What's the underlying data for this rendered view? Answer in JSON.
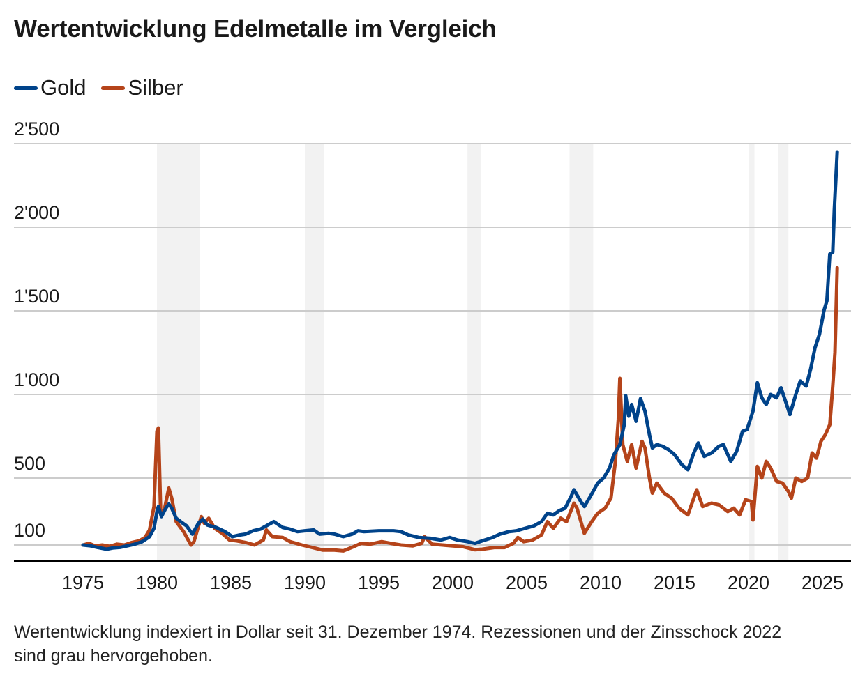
{
  "title": "Wertentwicklung Edelmetalle im Vergleich",
  "legend": [
    {
      "label": "Gold",
      "color": "#00438a"
    },
    {
      "label": "Silber",
      "color": "#b5441a"
    }
  ],
  "footnote": "Wertentwicklung indexiert in Dollar seit 31. Dezember 1974. Rezessionen und der Zinsschock 2022 sind grau hervorgehoben.",
  "chart_data": {
    "type": "line",
    "title": "Wertentwicklung Edelmetalle im Vergleich",
    "xlabel": "",
    "ylabel": "",
    "xlim": [
      1972.6,
      2027.0
    ],
    "ylim": [
      0,
      2500
    ],
    "grid": true,
    "legend_position": "top-left",
    "y_ticks": [
      {
        "value": 100,
        "label": "100"
      },
      {
        "value": 500,
        "label": "500"
      },
      {
        "value": 1000,
        "label": "1'000"
      },
      {
        "value": 1500,
        "label": "1'500"
      },
      {
        "value": 2000,
        "label": "2'000"
      },
      {
        "value": 2500,
        "label": "2'500"
      }
    ],
    "x_ticks": [
      {
        "value": 1975,
        "label": "1975"
      },
      {
        "value": 1980,
        "label": "1980"
      },
      {
        "value": 1985,
        "label": "1985"
      },
      {
        "value": 1990,
        "label": "1990"
      },
      {
        "value": 1995,
        "label": "1995"
      },
      {
        "value": 2000,
        "label": "2000"
      },
      {
        "value": 2005,
        "label": "2005"
      },
      {
        "value": 2010,
        "label": "2010"
      },
      {
        "value": 2015,
        "label": "2015"
      },
      {
        "value": 2020,
        "label": "2020"
      },
      {
        "value": 2025,
        "label": "2025"
      }
    ],
    "shaded_periods": [
      {
        "from": 1980.0,
        "to": 1982.9,
        "label": "Rezession"
      },
      {
        "from": 1990.0,
        "to": 1991.3,
        "label": "Rezession"
      },
      {
        "from": 2001.0,
        "to": 2001.9,
        "label": "Rezession"
      },
      {
        "from": 2007.9,
        "to": 2009.5,
        "label": "Rezession"
      },
      {
        "from": 2020.0,
        "to": 2020.4,
        "label": "Rezession"
      },
      {
        "from": 2022.0,
        "to": 2022.7,
        "label": "Zinsschock"
      }
    ],
    "series": [
      {
        "name": "Gold",
        "color": "#00438a",
        "points": [
          [
            1975.0,
            100
          ],
          [
            1975.5,
            95
          ],
          [
            1976.0,
            85
          ],
          [
            1976.6,
            75
          ],
          [
            1977.0,
            82
          ],
          [
            1977.5,
            86
          ],
          [
            1978.0,
            95
          ],
          [
            1978.5,
            105
          ],
          [
            1979.0,
            120
          ],
          [
            1979.5,
            150
          ],
          [
            1979.8,
            200
          ],
          [
            1980.0,
            300
          ],
          [
            1980.1,
            330
          ],
          [
            1980.3,
            270
          ],
          [
            1980.6,
            320
          ],
          [
            1980.8,
            345
          ],
          [
            1981.0,
            320
          ],
          [
            1981.3,
            260
          ],
          [
            1981.6,
            240
          ],
          [
            1982.0,
            215
          ],
          [
            1982.4,
            165
          ],
          [
            1982.8,
            230
          ],
          [
            1983.1,
            255
          ],
          [
            1983.4,
            220
          ],
          [
            1984.0,
            205
          ],
          [
            1984.6,
            180
          ],
          [
            1985.1,
            150
          ],
          [
            1985.6,
            160
          ],
          [
            1986.0,
            165
          ],
          [
            1986.5,
            185
          ],
          [
            1987.0,
            195
          ],
          [
            1987.4,
            215
          ],
          [
            1987.9,
            240
          ],
          [
            1988.5,
            205
          ],
          [
            1989.0,
            195
          ],
          [
            1989.5,
            180
          ],
          [
            1990.0,
            185
          ],
          [
            1990.6,
            190
          ],
          [
            1991.0,
            165
          ],
          [
            1991.6,
            170
          ],
          [
            1992.0,
            165
          ],
          [
            1992.6,
            150
          ],
          [
            1993.2,
            165
          ],
          [
            1993.6,
            185
          ],
          [
            1994.0,
            180
          ],
          [
            1995.0,
            185
          ],
          [
            1996.0,
            185
          ],
          [
            1996.5,
            180
          ],
          [
            1997.0,
            160
          ],
          [
            1997.7,
            145
          ],
          [
            1998.5,
            140
          ],
          [
            1999.2,
            130
          ],
          [
            1999.8,
            145
          ],
          [
            2000.3,
            130
          ],
          [
            2001.0,
            120
          ],
          [
            2001.5,
            110
          ],
          [
            2002.0,
            125
          ],
          [
            2002.7,
            145
          ],
          [
            2003.2,
            165
          ],
          [
            2003.8,
            180
          ],
          [
            2004.3,
            185
          ],
          [
            2004.9,
            200
          ],
          [
            2005.5,
            215
          ],
          [
            2006.0,
            240
          ],
          [
            2006.4,
            290
          ],
          [
            2006.8,
            280
          ],
          [
            2007.2,
            305
          ],
          [
            2007.6,
            320
          ],
          [
            2008.0,
            390
          ],
          [
            2008.2,
            430
          ],
          [
            2008.7,
            355
          ],
          [
            2008.9,
            330
          ],
          [
            2009.3,
            390
          ],
          [
            2009.8,
            470
          ],
          [
            2010.2,
            500
          ],
          [
            2010.6,
            560
          ],
          [
            2010.9,
            640
          ],
          [
            2011.3,
            700
          ],
          [
            2011.6,
            820
          ],
          [
            2011.7,
            992
          ],
          [
            2011.9,
            870
          ],
          [
            2012.1,
            940
          ],
          [
            2012.4,
            840
          ],
          [
            2012.7,
            975
          ],
          [
            2013.0,
            900
          ],
          [
            2013.3,
            760
          ],
          [
            2013.5,
            680
          ],
          [
            2013.8,
            700
          ],
          [
            2014.2,
            690
          ],
          [
            2014.6,
            670
          ],
          [
            2015.0,
            640
          ],
          [
            2015.5,
            580
          ],
          [
            2015.9,
            550
          ],
          [
            2016.3,
            650
          ],
          [
            2016.6,
            710
          ],
          [
            2017.0,
            630
          ],
          [
            2017.5,
            650
          ],
          [
            2018.0,
            690
          ],
          [
            2018.3,
            700
          ],
          [
            2018.8,
            600
          ],
          [
            2019.2,
            660
          ],
          [
            2019.6,
            780
          ],
          [
            2019.9,
            790
          ],
          [
            2020.3,
            900
          ],
          [
            2020.6,
            1070
          ],
          [
            2020.9,
            980
          ],
          [
            2021.2,
            940
          ],
          [
            2021.5,
            1000
          ],
          [
            2021.9,
            980
          ],
          [
            2022.2,
            1040
          ],
          [
            2022.5,
            960
          ],
          [
            2022.8,
            880
          ],
          [
            2023.2,
            1000
          ],
          [
            2023.5,
            1080
          ],
          [
            2023.9,
            1050
          ],
          [
            2024.2,
            1150
          ],
          [
            2024.5,
            1280
          ],
          [
            2024.8,
            1360
          ],
          [
            2025.1,
            1500
          ],
          [
            2025.3,
            1560
          ],
          [
            2025.5,
            1840
          ],
          [
            2025.7,
            1850
          ],
          [
            2025.8,
            2100
          ],
          [
            2026.0,
            2450
          ]
        ]
      },
      {
        "name": "Silber",
        "color": "#b5441a",
        "points": [
          [
            1975.0,
            100
          ],
          [
            1975.4,
            110
          ],
          [
            1975.8,
            95
          ],
          [
            1976.3,
            100
          ],
          [
            1976.8,
            92
          ],
          [
            1977.3,
            105
          ],
          [
            1977.8,
            100
          ],
          [
            1978.3,
            115
          ],
          [
            1978.8,
            125
          ],
          [
            1979.2,
            145
          ],
          [
            1979.5,
            190
          ],
          [
            1979.8,
            330
          ],
          [
            1980.0,
            780
          ],
          [
            1980.1,
            800
          ],
          [
            1980.25,
            300
          ],
          [
            1980.5,
            310
          ],
          [
            1980.8,
            440
          ],
          [
            1981.0,
            380
          ],
          [
            1981.3,
            240
          ],
          [
            1981.8,
            180
          ],
          [
            1982.3,
            100
          ],
          [
            1982.5,
            120
          ],
          [
            1983.0,
            270
          ],
          [
            1983.2,
            230
          ],
          [
            1983.5,
            260
          ],
          [
            1983.9,
            200
          ],
          [
            1984.4,
            170
          ],
          [
            1984.9,
            130
          ],
          [
            1985.4,
            125
          ],
          [
            1986.0,
            115
          ],
          [
            1986.6,
            100
          ],
          [
            1987.2,
            130
          ],
          [
            1987.4,
            190
          ],
          [
            1987.8,
            150
          ],
          [
            1988.5,
            145
          ],
          [
            1989.0,
            120
          ],
          [
            1989.8,
            100
          ],
          [
            1990.5,
            85
          ],
          [
            1991.2,
            70
          ],
          [
            1992.0,
            70
          ],
          [
            1992.6,
            65
          ],
          [
            1993.3,
            90
          ],
          [
            1993.8,
            110
          ],
          [
            1994.4,
            105
          ],
          [
            1995.2,
            120
          ],
          [
            1995.8,
            110
          ],
          [
            1996.5,
            100
          ],
          [
            1997.3,
            95
          ],
          [
            1997.9,
            110
          ],
          [
            1998.1,
            150
          ],
          [
            1998.6,
            105
          ],
          [
            1999.3,
            100
          ],
          [
            2000.0,
            95
          ],
          [
            2000.7,
            90
          ],
          [
            2001.5,
            72
          ],
          [
            2002.0,
            75
          ],
          [
            2002.8,
            85
          ],
          [
            2003.5,
            85
          ],
          [
            2004.1,
            110
          ],
          [
            2004.4,
            145
          ],
          [
            2004.8,
            120
          ],
          [
            2005.4,
            130
          ],
          [
            2006.0,
            160
          ],
          [
            2006.4,
            240
          ],
          [
            2006.8,
            200
          ],
          [
            2007.3,
            260
          ],
          [
            2007.7,
            240
          ],
          [
            2008.2,
            350
          ],
          [
            2008.4,
            320
          ],
          [
            2008.9,
            170
          ],
          [
            2009.4,
            240
          ],
          [
            2009.8,
            290
          ],
          [
            2010.3,
            320
          ],
          [
            2010.7,
            380
          ],
          [
            2011.0,
            600
          ],
          [
            2011.2,
            850
          ],
          [
            2011.3,
            1096
          ],
          [
            2011.5,
            700
          ],
          [
            2011.8,
            600
          ],
          [
            2012.1,
            700
          ],
          [
            2012.4,
            560
          ],
          [
            2012.8,
            720
          ],
          [
            2013.0,
            680
          ],
          [
            2013.3,
            500
          ],
          [
            2013.5,
            410
          ],
          [
            2013.8,
            470
          ],
          [
            2014.3,
            410
          ],
          [
            2014.8,
            380
          ],
          [
            2015.3,
            320
          ],
          [
            2015.9,
            280
          ],
          [
            2016.5,
            430
          ],
          [
            2016.9,
            330
          ],
          [
            2017.5,
            350
          ],
          [
            2018.0,
            340
          ],
          [
            2018.6,
            300
          ],
          [
            2019.0,
            320
          ],
          [
            2019.4,
            280
          ],
          [
            2019.8,
            370
          ],
          [
            2020.2,
            360
          ],
          [
            2020.3,
            250
          ],
          [
            2020.6,
            570
          ],
          [
            2020.9,
            500
          ],
          [
            2021.2,
            600
          ],
          [
            2021.5,
            560
          ],
          [
            2021.9,
            480
          ],
          [
            2022.3,
            470
          ],
          [
            2022.7,
            420
          ],
          [
            2022.9,
            380
          ],
          [
            2023.2,
            500
          ],
          [
            2023.6,
            480
          ],
          [
            2024.0,
            500
          ],
          [
            2024.3,
            650
          ],
          [
            2024.6,
            620
          ],
          [
            2024.9,
            720
          ],
          [
            2025.2,
            760
          ],
          [
            2025.5,
            820
          ],
          [
            2025.7,
            1050
          ],
          [
            2025.85,
            1250
          ],
          [
            2026.0,
            1758
          ]
        ]
      }
    ]
  }
}
